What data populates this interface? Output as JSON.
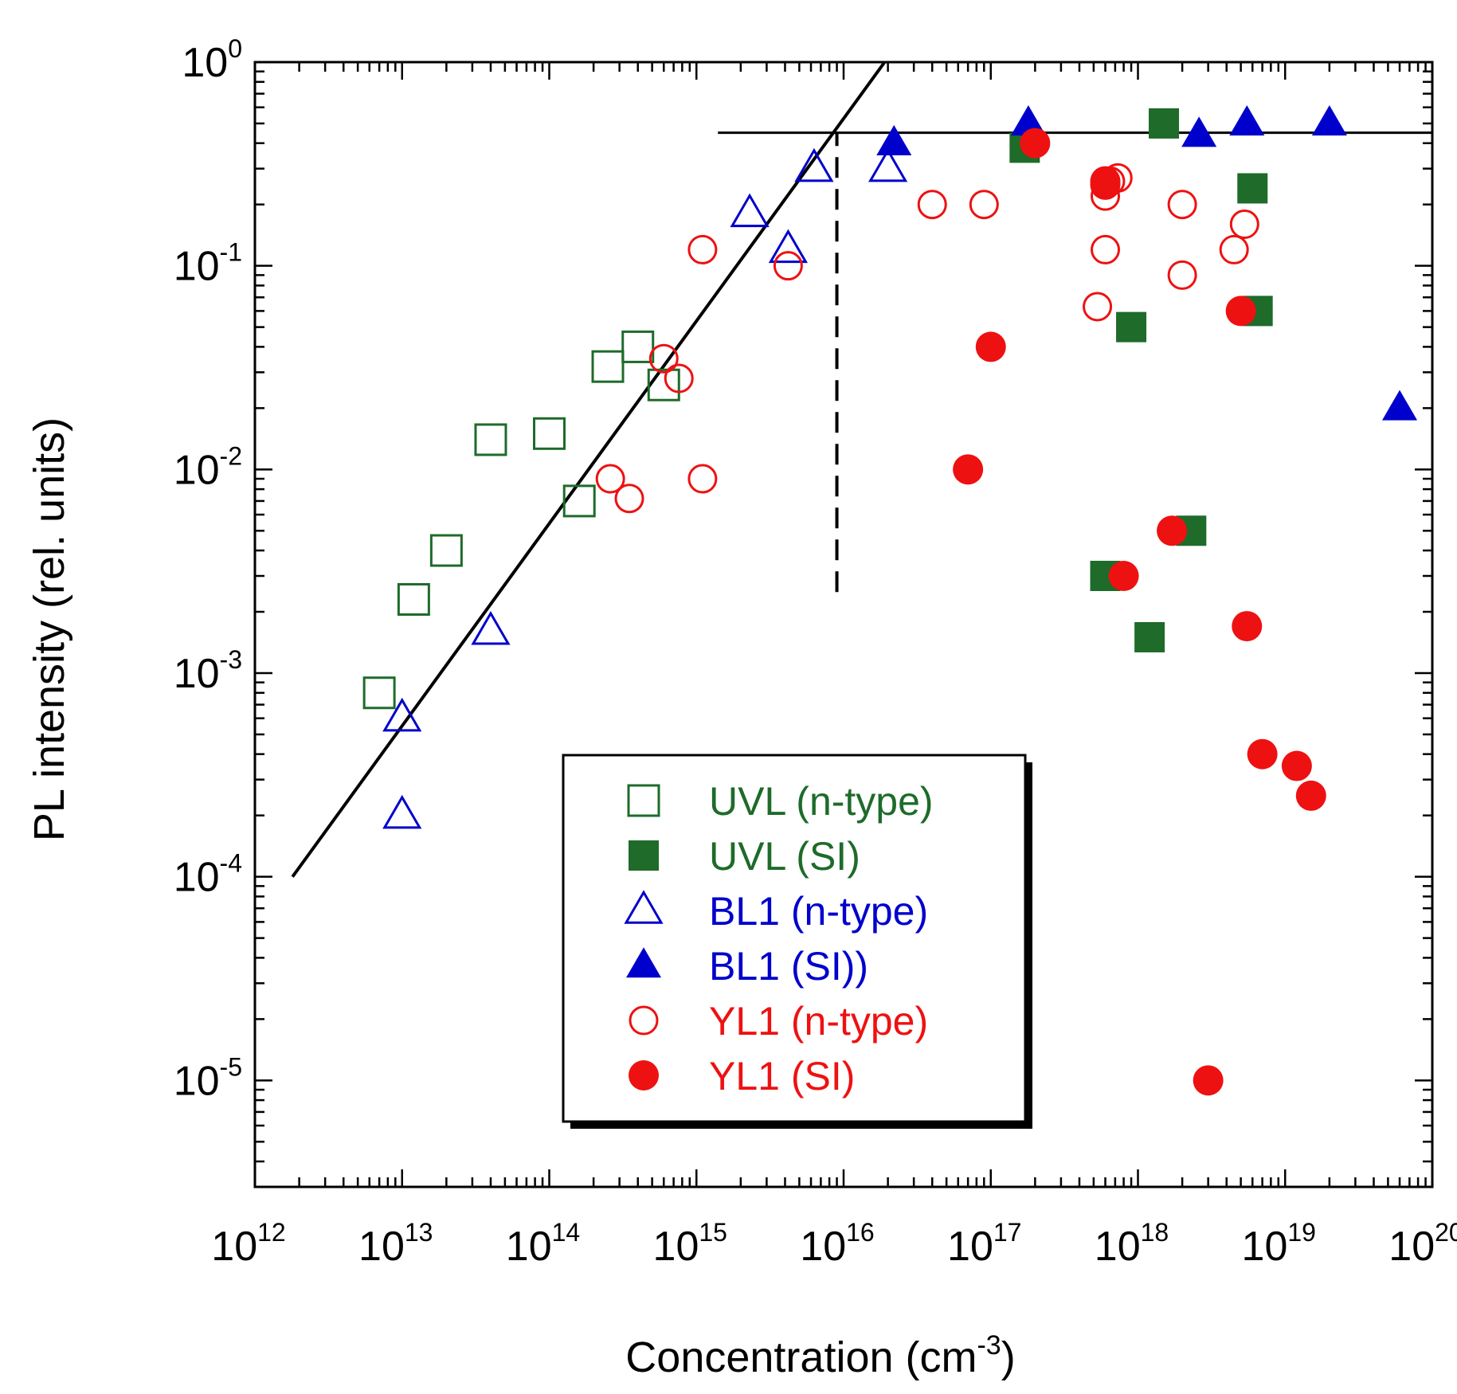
{
  "chart_data": {
    "type": "scatter",
    "title": "",
    "xlabel": "Concentration (cm",
    "xlabel_sup": "-3",
    "xlabel_suffix": ")",
    "ylabel": "PL intensity (rel. units)",
    "x_scale": "log",
    "y_scale": "log",
    "xlim": [
      1000000000000.0,
      1e+20
    ],
    "ylim": [
      3e-06,
      1
    ],
    "x_ticks": [
      {
        "value": 1000000000000.0,
        "base": "10",
        "exp": "12"
      },
      {
        "value": 10000000000000.0,
        "base": "10",
        "exp": "13"
      },
      {
        "value": 100000000000000.0,
        "base": "10",
        "exp": "14"
      },
      {
        "value": 1000000000000000.0,
        "base": "10",
        "exp": "15"
      },
      {
        "value": 1e+16,
        "base": "10",
        "exp": "16"
      },
      {
        "value": 1e+17,
        "base": "10",
        "exp": "17"
      },
      {
        "value": 1e+18,
        "base": "10",
        "exp": "18"
      },
      {
        "value": 1e+19,
        "base": "10",
        "exp": "19"
      },
      {
        "value": 1e+20,
        "base": "10",
        "exp": "20"
      }
    ],
    "y_ticks": [
      {
        "value": 1,
        "base": "10",
        "exp": "0"
      },
      {
        "value": 0.1,
        "base": "10",
        "exp": "-1"
      },
      {
        "value": 0.01,
        "base": "10",
        "exp": "-2"
      },
      {
        "value": 0.001,
        "base": "10",
        "exp": "-3"
      },
      {
        "value": 0.0001,
        "base": "10",
        "exp": "-4"
      },
      {
        "value": 1e-05,
        "base": "10",
        "exp": "-5"
      }
    ],
    "legend_position": "bottom-center",
    "series": [
      {
        "name": "UVL (n-type)",
        "marker": "square",
        "filled": false,
        "color": "#1e6b2a",
        "x": [
          7000000000000.0,
          12000000000000.0,
          20000000000000.0,
          40000000000000.0,
          100000000000000.0,
          160000000000000.0,
          250000000000000.0,
          400000000000000.0,
          600000000000000.0
        ],
        "y": [
          0.0008,
          0.0023,
          0.004,
          0.014,
          0.015,
          0.007,
          0.032,
          0.04,
          0.026
        ]
      },
      {
        "name": "UVL (SI)",
        "marker": "square",
        "filled": true,
        "color": "#1e6b2a",
        "x": [
          1.7e+17,
          6e+17,
          9e+17,
          1.2e+18,
          1.5e+18,
          2.3e+18,
          6e+18,
          6.5e+18
        ],
        "y": [
          0.38,
          0.003,
          0.05,
          0.0015,
          0.5,
          0.005,
          0.24,
          0.06
        ]
      },
      {
        "name": "BL1 (n-type)",
        "marker": "triangle",
        "filled": false,
        "color": "#0000cc",
        "x": [
          10000000000000.0,
          10000000000000.0,
          40000000000000.0,
          2300000000000000.0,
          4200000000000000.0,
          6300000000000000.0,
          2e+16
        ],
        "y": [
          0.0006,
          0.0002,
          0.0016,
          0.18,
          0.12,
          0.3,
          0.3
        ]
      },
      {
        "name": "BL1 (SI))",
        "marker": "triangle",
        "filled": true,
        "color": "#0000cc",
        "x": [
          2.2e+16,
          1.8e+17,
          2.6e+18,
          5.5e+18,
          2e+19,
          6e+19
        ],
        "y": [
          0.4,
          0.5,
          0.44,
          0.5,
          0.5,
          0.02
        ]
      },
      {
        "name": "YL1 (n-type)",
        "marker": "circle",
        "filled": false,
        "color": "#ee1111",
        "x": [
          1100000000000000.0,
          4200000000000000.0,
          260000000000000.0,
          350000000000000.0,
          600000000000000.0,
          760000000000000.0,
          1100000000000000.0,
          4e+16,
          9e+16,
          5.3e+17,
          6e+17,
          6e+17,
          6.5e+17,
          7.3e+17,
          2e+18,
          2e+18,
          4.5e+18,
          5.3e+18
        ],
        "y": [
          0.12,
          0.1,
          0.009,
          0.0072,
          0.035,
          0.028,
          0.009,
          0.2,
          0.2,
          0.063,
          0.12,
          0.22,
          0.26,
          0.27,
          0.2,
          0.09,
          0.12,
          0.16
        ]
      },
      {
        "name": "YL1 (SI)",
        "marker": "circle",
        "filled": true,
        "color": "#ee1111",
        "x": [
          2e+17,
          6e+17,
          7e+16,
          1e+17,
          8e+17,
          1.7e+18,
          3e+18,
          5e+18,
          5.5e+18,
          7e+18,
          1.2e+19,
          1.5e+19,
          6e+17
        ],
        "y": [
          0.4,
          0.25,
          0.01,
          0.04,
          0.003,
          0.005,
          1e-05,
          0.06,
          0.0017,
          0.0004,
          0.00035,
          0.00025,
          0.26
        ]
      }
    ],
    "fit_line": {
      "x": [
        1800000000000.0,
        1.9e+16
      ],
      "y": [
        0.0001,
        1
      ]
    },
    "saturation_line": {
      "x": [
        1400000000000000.0,
        1e+20
      ],
      "y": [
        0.45,
        0.45
      ]
    },
    "threshold_line": {
      "x": [
        9000000000000000.0,
        9000000000000000.0
      ],
      "y": [
        0.0025,
        0.45
      ]
    }
  }
}
